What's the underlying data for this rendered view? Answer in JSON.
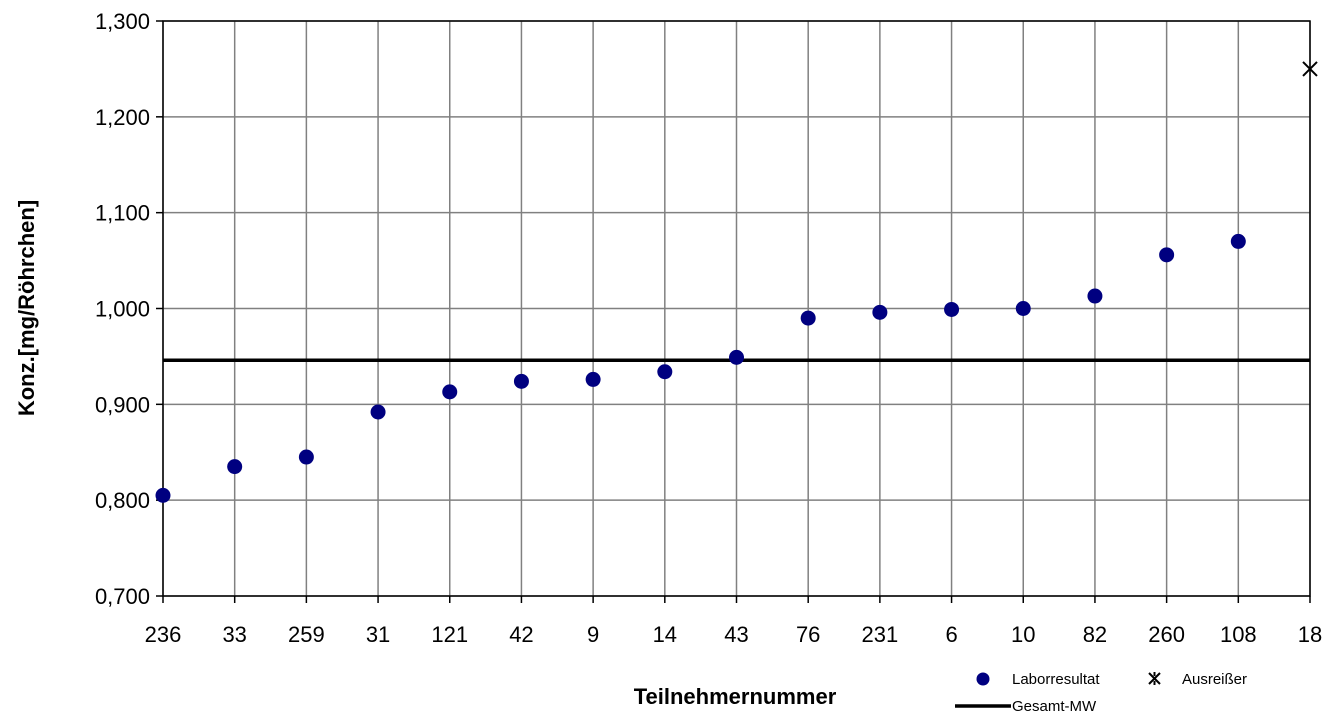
{
  "chart_data": {
    "type": "scatter",
    "categories": [
      "236",
      "33",
      "259",
      "31",
      "121",
      "42",
      "9",
      "14",
      "43",
      "76",
      "231",
      "6",
      "10",
      "82",
      "260",
      "108",
      "18"
    ],
    "series": [
      {
        "name": "Laborresultat",
        "marker": "circle",
        "color": "#000080",
        "values": [
          0.805,
          0.835,
          0.845,
          0.892,
          0.913,
          0.924,
          0.926,
          0.934,
          0.949,
          0.99,
          0.996,
          0.999,
          1.0,
          1.013,
          1.056,
          1.07,
          null
        ]
      },
      {
        "name": "Ausreißer",
        "marker": "x",
        "color": "#000000",
        "values": [
          null,
          null,
          null,
          null,
          null,
          null,
          null,
          null,
          null,
          null,
          null,
          null,
          null,
          null,
          null,
          null,
          1.25
        ]
      }
    ],
    "reference_line": {
      "name": "Gesamt-MW",
      "value": 0.946,
      "color": "#000000"
    },
    "ylim": [
      0.7,
      1.3
    ],
    "yticks": [
      0.7,
      0.8,
      0.9,
      1.0,
      1.1,
      1.2,
      1.3
    ],
    "ytick_labels": [
      "0,700",
      "0,800",
      "0,900",
      "1,000",
      "1,100",
      "1,200",
      "1,300"
    ],
    "xlabel": "Teilnehmernummer",
    "ylabel": "Konz.[mg/Röhrchen]",
    "grid": true,
    "legend_position": "bottom-right",
    "legend": {
      "points": "Laborresultat",
      "outliers": "Ausreißer",
      "mean": "Gesamt-MW"
    }
  }
}
